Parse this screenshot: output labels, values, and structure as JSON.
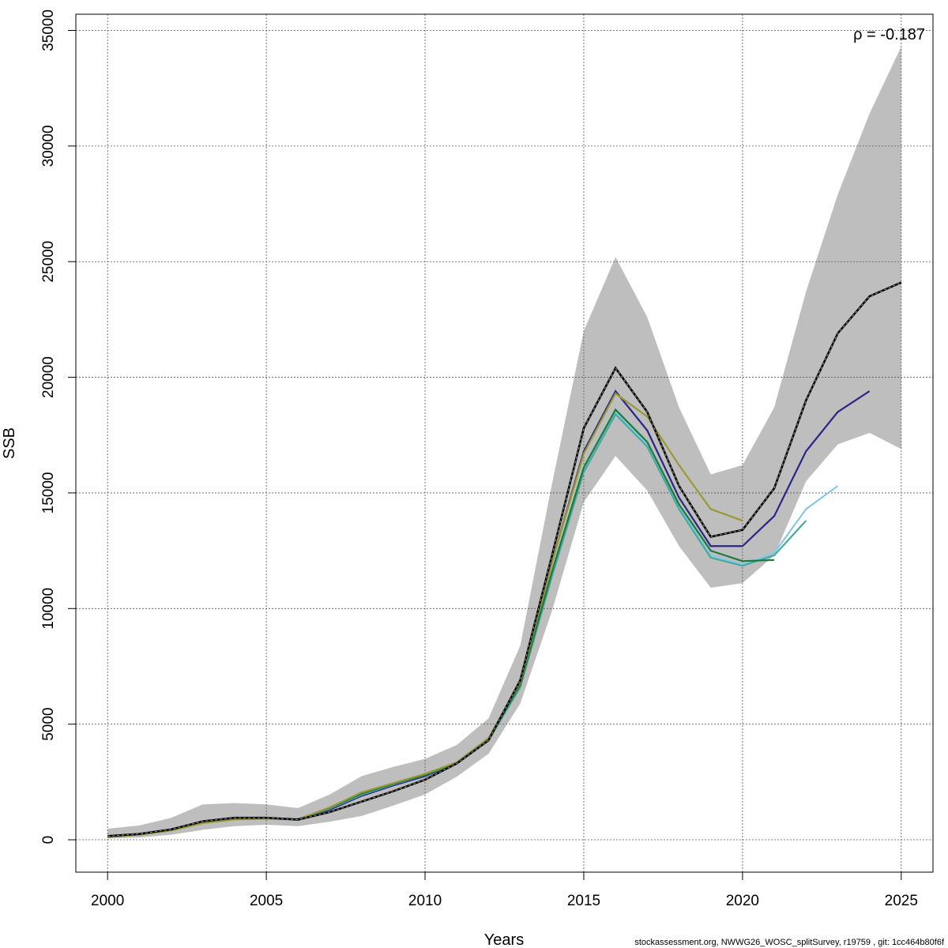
{
  "chart_data": {
    "type": "line",
    "title": "",
    "xlabel": "Years",
    "ylabel": "SSB",
    "xlim": [
      1999,
      2026
    ],
    "ylim": [
      -1400,
      35700
    ],
    "xticks": [
      2000,
      2005,
      2010,
      2015,
      2020,
      2025
    ],
    "yticks": [
      0,
      5000,
      10000,
      15000,
      20000,
      25000,
      30000,
      35000
    ],
    "grid": true,
    "annotation": "ρ = -0.187",
    "footer": "stockassessment.org, NWWG26_WOSC_splitSurvey, r19759 , git: 1cc464b80f6f",
    "confidence_band": {
      "x": [
        2000,
        2001,
        2002,
        2003,
        2004,
        2005,
        2006,
        2007,
        2008,
        2009,
        2010,
        2011,
        2012,
        2013,
        2014,
        2015,
        2016,
        2017,
        2018,
        2019,
        2020,
        2021,
        2022,
        2023,
        2024,
        2025
      ],
      "upper": [
        480,
        620,
        950,
        1530,
        1590,
        1530,
        1370,
        1960,
        2750,
        3150,
        3500,
        4100,
        5250,
        8400,
        15400,
        22000,
        25200,
        22600,
        18700,
        15800,
        16200,
        18700,
        23700,
        27900,
        31400,
        34300
      ],
      "lower": [
        50,
        100,
        220,
        430,
        590,
        650,
        590,
        780,
        1030,
        1480,
        1960,
        2730,
        3720,
        5900,
        9900,
        14600,
        16600,
        15100,
        12700,
        10900,
        11100,
        12300,
        15500,
        17100,
        17600,
        16900
      ]
    },
    "series": [
      {
        "color": "#333333",
        "dashed": true,
        "x": [
          2000,
          2001,
          2002,
          2003,
          2004,
          2005,
          2006,
          2007,
          2008,
          2009,
          2010,
          2011,
          2012,
          2013,
          2014,
          2015,
          2016,
          2017,
          2018,
          2019,
          2020,
          2021,
          2022,
          2023,
          2024,
          2025
        ],
        "values": [
          160,
          250,
          450,
          800,
          950,
          950,
          870,
          1200,
          1650,
          2100,
          2600,
          3300,
          4300,
          6900,
          12300,
          17800,
          20400,
          18500,
          15300,
          13100,
          13400,
          15200,
          19000,
          21900,
          23500,
          24100
        ]
      },
      {
        "color": "#2b2585",
        "x": [
          2000,
          2001,
          2002,
          2003,
          2004,
          2005,
          2006,
          2007,
          2008,
          2009,
          2010,
          2011,
          2012,
          2013,
          2014,
          2015,
          2016,
          2017,
          2018,
          2019,
          2020,
          2021,
          2022,
          2023,
          2024
        ],
        "values": [
          150,
          240,
          430,
          750,
          920,
          940,
          900,
          1300,
          1900,
          2350,
          2750,
          3300,
          4350,
          6800,
          12000,
          16800,
          19400,
          17700,
          14800,
          12700,
          12700,
          14000,
          16800,
          18500,
          19400
        ]
      },
      {
        "color": "#87c8e8",
        "x": [
          2000,
          2001,
          2002,
          2003,
          2004,
          2005,
          2006,
          2007,
          2008,
          2009,
          2010,
          2011,
          2012,
          2013,
          2014,
          2015,
          2016,
          2017,
          2018,
          2019,
          2020,
          2021,
          2022,
          2023
        ],
        "values": [
          140,
          230,
          410,
          730,
          900,
          930,
          890,
          1350,
          1950,
          2400,
          2800,
          3300,
          4300,
          6600,
          11500,
          16000,
          18500,
          17100,
          14400,
          12300,
          11900,
          12400,
          14300,
          15300
        ]
      },
      {
        "color": "#44aa99",
        "x": [
          2000,
          2001,
          2002,
          2003,
          2004,
          2005,
          2006,
          2007,
          2008,
          2009,
          2010,
          2011,
          2012,
          2013,
          2014,
          2015,
          2016,
          2017,
          2018,
          2019,
          2020,
          2021,
          2022
        ],
        "values": [
          140,
          230,
          410,
          730,
          900,
          930,
          890,
          1350,
          1950,
          2400,
          2800,
          3300,
          4300,
          6600,
          11400,
          15900,
          18400,
          17000,
          14300,
          12200,
          11850,
          12300,
          13800
        ]
      },
      {
        "color": "#1a7a3c",
        "x": [
          2000,
          2001,
          2002,
          2003,
          2004,
          2005,
          2006,
          2007,
          2008,
          2009,
          2010,
          2011,
          2012,
          2013,
          2014,
          2015,
          2016,
          2017,
          2018,
          2019,
          2020,
          2021
        ],
        "values": [
          140,
          230,
          410,
          730,
          900,
          930,
          890,
          1380,
          2000,
          2420,
          2800,
          3330,
          4350,
          6700,
          11600,
          16100,
          18600,
          17200,
          14500,
          12500,
          12050,
          12100
        ]
      },
      {
        "color": "#999933",
        "x": [
          2000,
          2001,
          2002,
          2003,
          2004,
          2005,
          2006,
          2007,
          2008,
          2009,
          2010,
          2011,
          2012,
          2013,
          2014,
          2015,
          2016,
          2017,
          2018,
          2019,
          2020
        ],
        "values": [
          120,
          220,
          400,
          720,
          880,
          920,
          880,
          1400,
          2050,
          2450,
          2850,
          3350,
          4400,
          6800,
          12000,
          16700,
          19300,
          18300,
          16200,
          14300,
          13800
        ]
      }
    ]
  }
}
